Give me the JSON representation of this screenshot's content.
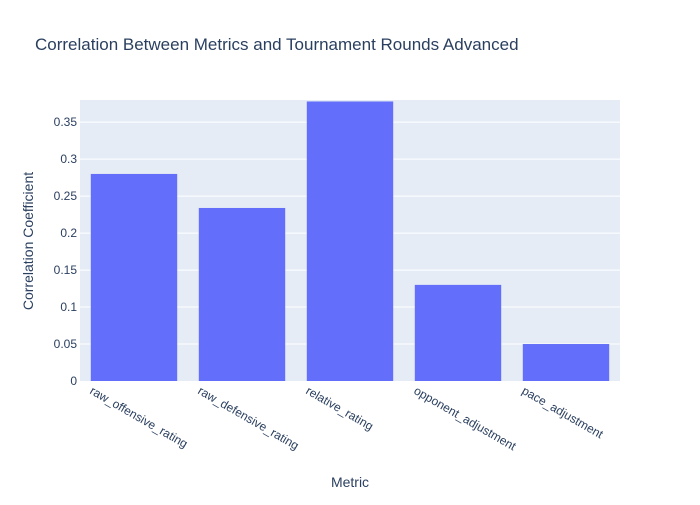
{
  "chart_data": {
    "type": "bar",
    "title": "Correlation Between Metrics and Tournament Rounds Advanced",
    "xlabel": "Metric",
    "ylabel": "Correlation Coefficient",
    "categories": [
      "raw_offensive_rating",
      "raw_defensive_rating",
      "relative_rating",
      "opponent_adjustment",
      "pace_adjustment"
    ],
    "values": [
      0.28,
      0.234,
      0.378,
      0.13,
      0.05
    ],
    "ylim": [
      0,
      0.38
    ],
    "yticks": [
      0,
      0.05,
      0.1,
      0.15,
      0.2,
      0.25,
      0.3,
      0.35
    ],
    "ytick_labels": [
      "0",
      "0.05",
      "0.1",
      "0.15",
      "0.2",
      "0.25",
      "0.3",
      "0.35"
    ],
    "grid": true,
    "colors": {
      "bar": "#636efa",
      "plot_background": "#e5ecf6",
      "grid": "#ffffff",
      "text": "#2a3f5f",
      "tick_text": "#2a3f5f"
    }
  }
}
